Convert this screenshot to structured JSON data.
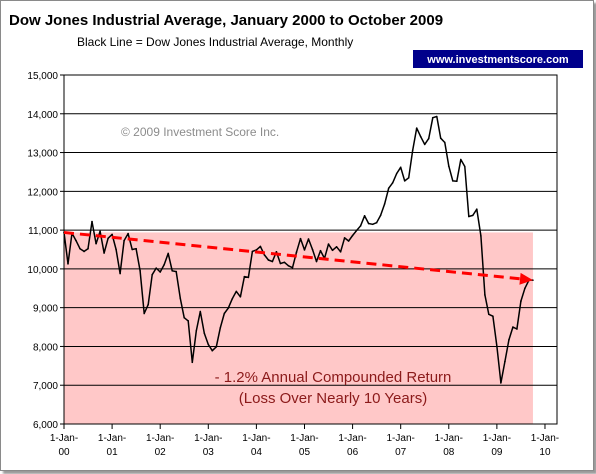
{
  "chart_data": {
    "type": "line",
    "title": "Dow Jones Industrial Average, January 2000 to October 2009",
    "subtitle": "Black Line = Dow Jones Industrial Average, Monthly",
    "source_badge": "www.investmentscore.com",
    "copyright": "© 2009 Investment Score Inc.",
    "annotation_line1": "- 1.2% Annual Compounded Return",
    "annotation_line2": "(Loss Over Nearly 10 Years)",
    "ylim": [
      6000,
      15000
    ],
    "yticks": [
      6000,
      7000,
      8000,
      9000,
      10000,
      11000,
      12000,
      13000,
      14000,
      15000
    ],
    "ytick_labels": [
      "6,000",
      "7,000",
      "8,000",
      "9,000",
      "10,000",
      "11,000",
      "12,000",
      "13,000",
      "14,000",
      "15,000"
    ],
    "xlim": [
      2000.0,
      2010.25
    ],
    "xticks": [
      2000,
      2001,
      2002,
      2003,
      2004,
      2005,
      2006,
      2007,
      2008,
      2009,
      2010
    ],
    "xtick_labels": [
      {
        "top": "1-Jan-",
        "bottom": "00"
      },
      {
        "top": "1-Jan-",
        "bottom": "01"
      },
      {
        "top": "1-Jan-",
        "bottom": "02"
      },
      {
        "top": "1-Jan-",
        "bottom": "03"
      },
      {
        "top": "1-Jan-",
        "bottom": "04"
      },
      {
        "top": "1-Jan-",
        "bottom": "05"
      },
      {
        "top": "1-Jan-",
        "bottom": "06"
      },
      {
        "top": "1-Jan-",
        "bottom": "07"
      },
      {
        "top": "1-Jan-",
        "bottom": "08"
      },
      {
        "top": "1-Jan-",
        "bottom": "09"
      },
      {
        "top": "1-Jan-",
        "bottom": "10"
      }
    ],
    "grid": "horizontal",
    "shaded_region": {
      "x": [
        2000.0,
        2009.75
      ],
      "y": [
        6000,
        10940
      ],
      "color": "#ffc8c8"
    },
    "trend": {
      "x": [
        2000.0,
        2009.75
      ],
      "y": [
        10940,
        9710
      ],
      "color": "#ff0000",
      "style": "dashed-arrow"
    },
    "series": [
      {
        "color": "#000000",
        "x": [
          2000.0,
          2000.083,
          2000.167,
          2000.25,
          2000.333,
          2000.417,
          2000.5,
          2000.583,
          2000.667,
          2000.75,
          2000.833,
          2000.917,
          2001.0,
          2001.083,
          2001.167,
          2001.25,
          2001.333,
          2001.417,
          2001.5,
          2001.583,
          2001.667,
          2001.75,
          2001.833,
          2001.917,
          2002.0,
          2002.083,
          2002.167,
          2002.25,
          2002.333,
          2002.417,
          2002.5,
          2002.583,
          2002.667,
          2002.75,
          2002.833,
          2002.917,
          2003.0,
          2003.083,
          2003.167,
          2003.25,
          2003.333,
          2003.417,
          2003.5,
          2003.583,
          2003.667,
          2003.75,
          2003.833,
          2003.917,
          2004.0,
          2004.083,
          2004.167,
          2004.25,
          2004.333,
          2004.417,
          2004.5,
          2004.583,
          2004.667,
          2004.75,
          2004.833,
          2004.917,
          2005.0,
          2005.083,
          2005.167,
          2005.25,
          2005.333,
          2005.417,
          2005.5,
          2005.583,
          2005.667,
          2005.75,
          2005.833,
          2005.917,
          2006.0,
          2006.083,
          2006.167,
          2006.25,
          2006.333,
          2006.417,
          2006.5,
          2006.583,
          2006.667,
          2006.75,
          2006.833,
          2006.917,
          2007.0,
          2007.083,
          2007.167,
          2007.25,
          2007.333,
          2007.417,
          2007.5,
          2007.583,
          2007.667,
          2007.75,
          2007.833,
          2007.917,
          2008.0,
          2008.083,
          2008.167,
          2008.25,
          2008.333,
          2008.417,
          2008.5,
          2008.583,
          2008.667,
          2008.75,
          2008.833,
          2008.917,
          2009.0,
          2009.083,
          2009.167,
          2009.25,
          2009.333,
          2009.417,
          2009.5,
          2009.583,
          2009.667,
          2009.75
        ],
        "y": [
          10940,
          10130,
          10920,
          10730,
          10520,
          10450,
          10520,
          11220,
          10650,
          10970,
          10410,
          10790,
          10890,
          10500,
          9880,
          10730,
          10910,
          10500,
          10520,
          9950,
          8850,
          9080,
          9850,
          10020,
          9920,
          10110,
          10400,
          9950,
          9930,
          9240,
          8740,
          8660,
          7590,
          8400,
          8900,
          8340,
          8050,
          7890,
          7990,
          8480,
          8850,
          8990,
          9230,
          9420,
          9280,
          9800,
          9780,
          10450,
          10490,
          10580,
          10360,
          10230,
          10190,
          10440,
          10140,
          10170,
          10080,
          10030,
          10430,
          10780,
          10490,
          10770,
          10500,
          10190,
          10470,
          10270,
          10640,
          10480,
          10570,
          10440,
          10800,
          10720,
          10860,
          10990,
          11110,
          11370,
          11170,
          11150,
          11190,
          11380,
          11680,
          12080,
          12220,
          12460,
          12620,
          12270,
          12350,
          13060,
          13630,
          13410,
          13210,
          13360,
          13900,
          13930,
          13370,
          13260,
          12650,
          12270,
          12260,
          12820,
          12640,
          11350,
          11380,
          11540,
          10850,
          9330,
          8830,
          8780,
          8000,
          7060,
          7610,
          8170,
          8500,
          8450,
          9170,
          9500,
          9710,
          9710
        ]
      }
    ]
  }
}
